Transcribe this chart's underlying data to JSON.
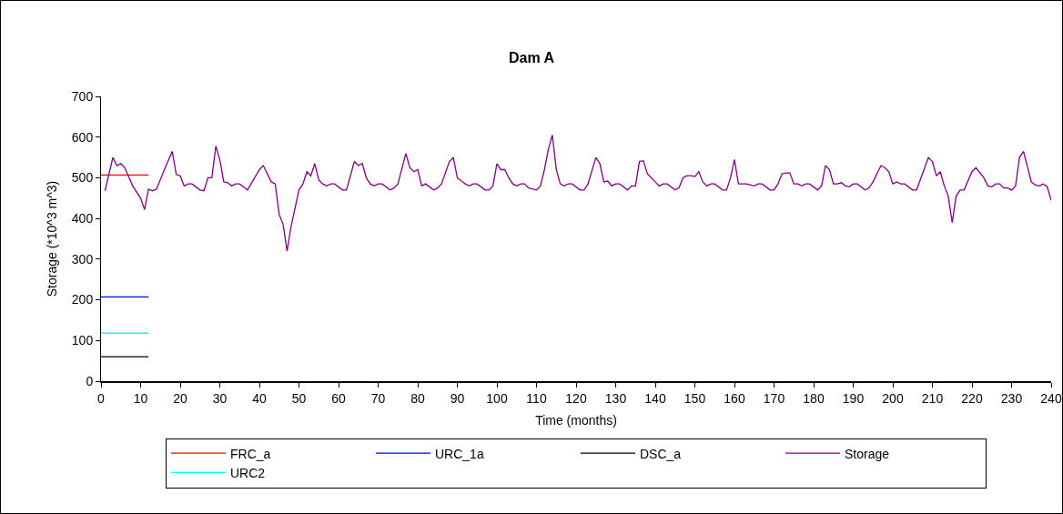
{
  "chart_data": {
    "type": "line",
    "title": "Dam A",
    "xlabel": "Time (months)",
    "ylabel": "Storage (*10^3 m^3)",
    "xlim": [
      0,
      240
    ],
    "xticks": [
      0,
      10,
      20,
      30,
      40,
      50,
      60,
      70,
      80,
      90,
      100,
      110,
      120,
      130,
      140,
      150,
      160,
      170,
      180,
      190,
      200,
      210,
      220,
      230,
      240
    ],
    "ylim": [
      0,
      700
    ],
    "yticks": [
      0,
      100,
      200,
      300,
      400,
      500,
      600,
      700
    ],
    "grid": false,
    "legend": "bottom",
    "marker": "none",
    "line_style": "solid",
    "series": [
      {
        "name": "FRC_a",
        "color": "#ff0000",
        "x": [
          0,
          12
        ],
        "values": [
          507,
          507
        ]
      },
      {
        "name": "URC_1a",
        "color": "#0000ff",
        "x": [
          0,
          12
        ],
        "values": [
          207,
          207
        ]
      },
      {
        "name": "DSC_a",
        "color": "#000000",
        "x": [
          0,
          12
        ],
        "values": [
          60,
          60
        ]
      },
      {
        "name": "Storage",
        "color": "#800080",
        "x": [
          1,
          3,
          4,
          5,
          6,
          8,
          10,
          11,
          12,
          13,
          14,
          16,
          18,
          19,
          20,
          21,
          22,
          23,
          25,
          26,
          27,
          28,
          29,
          30,
          31,
          32,
          33,
          34,
          35,
          37,
          40,
          41,
          43,
          44,
          45,
          46,
          47,
          48,
          50,
          51,
          52,
          53,
          54,
          55,
          56,
          57,
          58,
          59,
          61,
          62,
          64,
          65,
          66,
          67,
          68,
          69,
          70,
          71,
          73,
          74,
          75,
          77,
          78,
          79,
          80,
          81,
          82,
          84,
          85,
          86,
          88,
          89,
          90,
          92,
          93,
          94,
          95,
          97,
          98,
          99,
          100,
          101,
          102,
          103,
          104,
          105,
          106,
          107,
          108,
          110,
          111,
          112,
          113,
          114,
          115,
          116,
          117,
          118,
          119,
          121,
          122,
          123,
          125,
          126,
          127,
          128,
          129,
          130,
          131,
          133,
          134,
          135,
          136,
          137,
          138,
          140,
          141,
          142,
          143,
          145,
          146,
          147,
          148,
          149,
          150,
          151,
          152,
          153,
          154,
          155,
          157,
          158,
          159,
          160,
          161,
          162,
          163,
          165,
          166,
          167,
          169,
          170,
          171,
          172,
          173,
          174,
          175,
          176,
          177,
          178,
          179,
          181,
          182,
          183,
          184,
          185,
          186,
          187,
          188,
          189,
          190,
          191,
          193,
          194,
          195,
          197,
          198,
          199,
          200,
          201,
          202,
          203,
          205,
          206,
          209,
          210,
          211,
          212,
          213,
          214,
          215,
          216,
          217,
          218,
          220,
          221,
          223,
          224,
          225,
          226,
          227,
          228,
          229,
          230,
          231,
          232,
          233,
          235,
          236,
          237,
          238,
          239,
          240
        ],
        "values": [
          468,
          550,
          530,
          535,
          525,
          480,
          450,
          422,
          472,
          468,
          472,
          520,
          565,
          508,
          505,
          480,
          485,
          485,
          470,
          468,
          500,
          500,
          578,
          545,
          490,
          488,
          480,
          485,
          485,
          470,
          520,
          530,
          490,
          485,
          410,
          385,
          320,
          380,
          470,
          485,
          515,
          505,
          535,
          495,
          485,
          480,
          485,
          485,
          470,
          470,
          540,
          530,
          535,
          500,
          485,
          480,
          485,
          485,
          470,
          475,
          485,
          560,
          525,
          515,
          520,
          480,
          485,
          470,
          475,
          485,
          540,
          550,
          500,
          485,
          480,
          485,
          485,
          470,
          470,
          480,
          535,
          520,
          520,
          500,
          485,
          480,
          485,
          485,
          475,
          470,
          480,
          520,
          570,
          605,
          520,
          485,
          480,
          485,
          485,
          470,
          470,
          485,
          550,
          535,
          490,
          492,
          480,
          485,
          485,
          470,
          480,
          480,
          540,
          542,
          510,
          490,
          480,
          485,
          485,
          470,
          475,
          500,
          505,
          505,
          503,
          515,
          490,
          480,
          485,
          485,
          470,
          470,
          500,
          545,
          485,
          485,
          485,
          480,
          485,
          485,
          470,
          470,
          485,
          510,
          512,
          512,
          485,
          485,
          480,
          485,
          485,
          470,
          480,
          530,
          520,
          485,
          485,
          488,
          480,
          478,
          485,
          485,
          470,
          475,
          490,
          530,
          525,
          515,
          485,
          490,
          485,
          485,
          470,
          470,
          550,
          540,
          505,
          515,
          480,
          455,
          390,
          455,
          470,
          470,
          515,
          525,
          500,
          480,
          478,
          485,
          485,
          475,
          475,
          470,
          480,
          550,
          565,
          490,
          482,
          480,
          485,
          478,
          445
        ]
      },
      {
        "name": "URC2",
        "color": "#00ffff",
        "x": [
          0,
          12
        ],
        "values": [
          118,
          118
        ]
      }
    ]
  }
}
